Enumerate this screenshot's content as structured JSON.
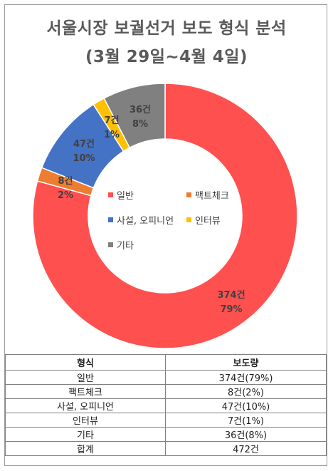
{
  "title": {
    "line1": "서울시장 보궐선거 보도 형식 분석",
    "line2": "(3월 29일~4월 4일)"
  },
  "chart_data": {
    "type": "pie",
    "variant": "donut",
    "title": "서울시장 보궐선거 보도 형식 분석 (3월 29일~4월 4일)",
    "series": [
      {
        "name": "일반",
        "value": 374,
        "count_label": "374건",
        "pct_label": "79%",
        "color": "#ff5050"
      },
      {
        "name": "팩트체크",
        "value": 8,
        "count_label": "8건",
        "pct_label": "2%",
        "color": "#ed7d31"
      },
      {
        "name": "사설, 오피니언",
        "value": 47,
        "count_label": "47건",
        "pct_label": "10%",
        "color": "#4472c4"
      },
      {
        "name": "인터뷰",
        "value": 7,
        "count_label": "7건",
        "pct_label": "1%",
        "color": "#ffc000"
      },
      {
        "name": "기타",
        "value": 36,
        "count_label": "36건",
        "pct_label": "8%",
        "color": "#808080"
      }
    ],
    "legend_position": "center"
  },
  "table": {
    "headers": [
      "형식",
      "보도량"
    ],
    "rows": [
      [
        "일반",
        "374건(79%)"
      ],
      [
        "팩트체크",
        "8건(2%)"
      ],
      [
        "사설, 오피니언",
        "47건(10%)"
      ],
      [
        "인터뷰",
        "7건(1%)"
      ],
      [
        "기타",
        "36건(8%)"
      ],
      [
        "합계",
        "472건"
      ]
    ]
  }
}
